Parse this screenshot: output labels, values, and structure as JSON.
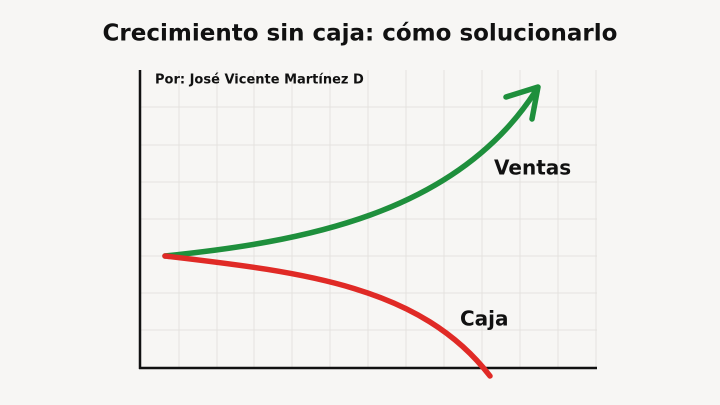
{
  "header": {
    "title": "Crecimiento sin caja: cómo solucionarlo",
    "author": "Por: José Vicente Martínez D"
  },
  "labels": {
    "sales": "Ventas",
    "cash": "Caja"
  }
}
